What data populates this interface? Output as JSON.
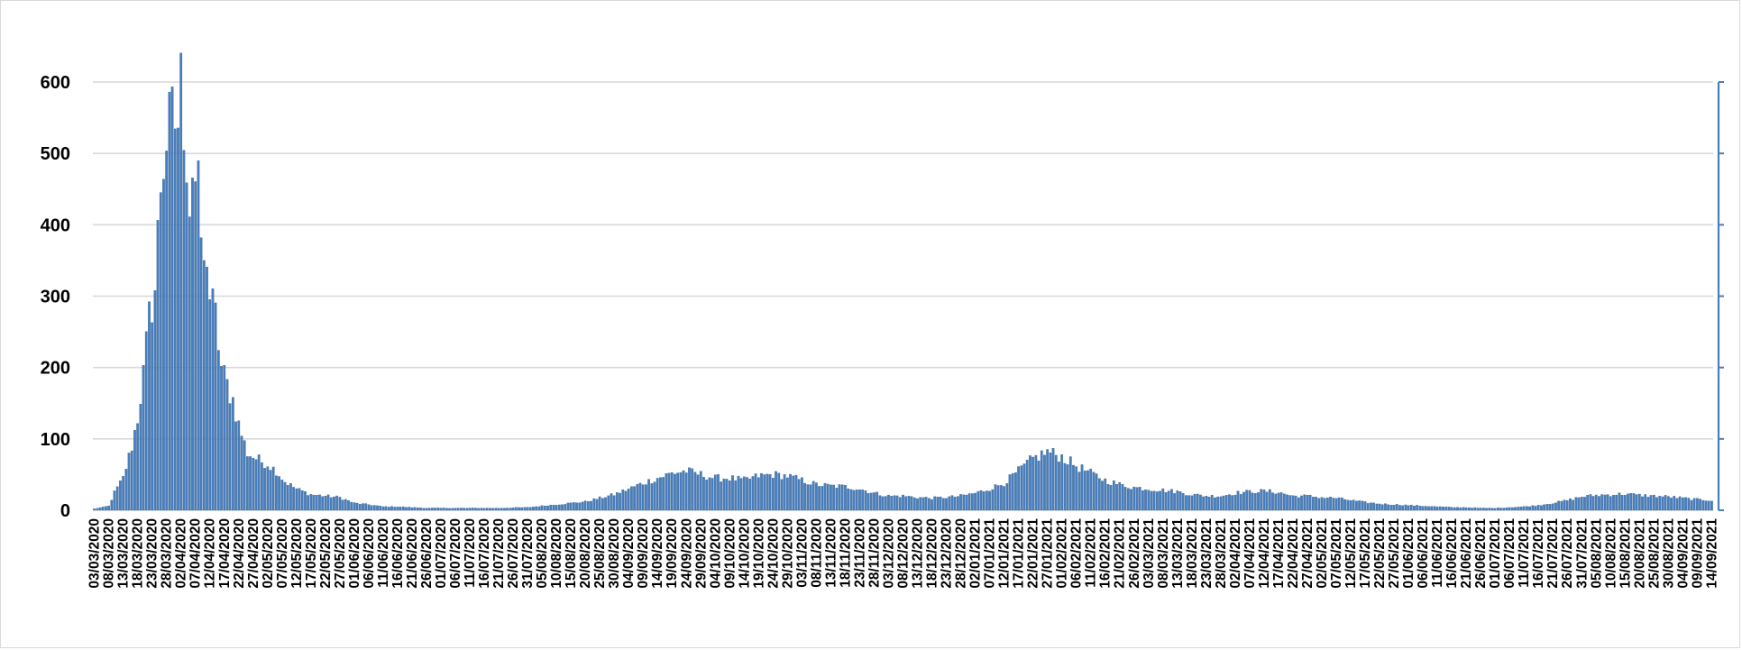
{
  "chart_data": {
    "type": "bar",
    "title": "",
    "xlabel": "",
    "ylabel": "",
    "ylim": [
      0,
      600
    ],
    "yticks": [
      0,
      100,
      200,
      300,
      400,
      500,
      600
    ],
    "grid": true,
    "legend": "none",
    "bar_color": "#4a7ebb",
    "bar_edge_color": "#2f5f95",
    "x_start": "03/03/2020",
    "x_end": "14/09/2021",
    "x_tick_labels": [
      "03/03/2020",
      "08/03/2020",
      "13/03/2020",
      "18/03/2020",
      "23/03/2020",
      "28/03/2020",
      "02/04/2020",
      "07/04/2020",
      "12/04/2020",
      "17/04/2020",
      "22/04/2020",
      "27/04/2020",
      "02/05/2020",
      "07/05/2020",
      "12/05/2020",
      "17/05/2020",
      "22/05/2020",
      "27/05/2020",
      "01/06/2020",
      "06/06/2020",
      "11/06/2020",
      "16/06/2020",
      "21/06/2020",
      "26/06/2020",
      "01/07/2020",
      "06/07/2020",
      "11/07/2020",
      "16/07/2020",
      "21/07/2020",
      "26/07/2020",
      "31/07/2020",
      "05/08/2020",
      "10/08/2020",
      "15/08/2020",
      "20/08/2020",
      "25/08/2020",
      "30/08/2020",
      "04/09/2020",
      "09/09/2020",
      "14/09/2020",
      "19/09/2020",
      "24/09/2020",
      "29/09/2020",
      "04/10/2020",
      "09/10/2020",
      "14/10/2020",
      "19/10/2020",
      "24/10/2020",
      "29/10/2020",
      "03/11/2020",
      "08/11/2020",
      "13/11/2020",
      "18/11/2020",
      "23/11/2020",
      "28/11/2020",
      "03/12/2020",
      "08/12/2020",
      "13/12/2020",
      "18/12/2020",
      "23/12/2020",
      "28/12/2020",
      "02/01/2021",
      "07/01/2021",
      "12/01/2021",
      "17/01/2021",
      "22/01/2021",
      "27/01/2021",
      "01/02/2021",
      "06/02/2021",
      "11/02/2021",
      "16/02/2021",
      "21/02/2021",
      "26/02/2021",
      "03/03/2021",
      "08/03/2021",
      "13/03/2021",
      "18/03/2021",
      "23/03/2021",
      "28/03/2021",
      "02/04/2021",
      "07/04/2021",
      "12/04/2021",
      "17/04/2021",
      "22/04/2021",
      "27/04/2021",
      "02/05/2021",
      "07/05/2021",
      "12/05/2021",
      "17/05/2021",
      "22/05/2021",
      "27/05/2021",
      "01/06/2021",
      "06/06/2021",
      "11/06/2021",
      "16/06/2021",
      "21/06/2021",
      "26/06/2021",
      "01/07/2021",
      "06/07/2021",
      "11/07/2021",
      "16/07/2021",
      "21/07/2021",
      "26/07/2021",
      "31/07/2021",
      "05/08/2021",
      "10/08/2021",
      "15/08/2021",
      "20/08/2021",
      "25/08/2021",
      "30/08/2021",
      "04/09/2021",
      "09/09/2021",
      "14/09/2021"
    ],
    "key_points": [
      [
        "03/03/2020",
        2
      ],
      [
        "08/03/2020",
        6
      ],
      [
        "10/03/2020",
        25
      ],
      [
        "13/03/2020",
        45
      ],
      [
        "16/03/2020",
        90
      ],
      [
        "18/03/2020",
        130
      ],
      [
        "20/03/2020",
        190
      ],
      [
        "22/03/2020",
        270
      ],
      [
        "24/03/2020",
        310
      ],
      [
        "26/03/2020",
        460
      ],
      [
        "28/03/2020",
        520
      ],
      [
        "30/03/2020",
        545
      ],
      [
        "01/04/2020",
        545
      ],
      [
        "02/04/2020",
        595
      ],
      [
        "04/04/2020",
        500
      ],
      [
        "05/04/2020",
        430
      ],
      [
        "06/04/2020",
        480
      ],
      [
        "08/04/2020",
        440
      ],
      [
        "10/04/2020",
        330
      ],
      [
        "11/04/2020",
        365
      ],
      [
        "12/04/2020",
        300
      ],
      [
        "14/04/2020",
        270
      ],
      [
        "16/04/2020",
        200
      ],
      [
        "18/04/2020",
        175
      ],
      [
        "20/04/2020",
        155
      ],
      [
        "22/04/2020",
        120
      ],
      [
        "25/04/2020",
        80
      ],
      [
        "27/04/2020",
        75
      ],
      [
        "30/04/2020",
        68
      ],
      [
        "02/05/2020",
        65
      ],
      [
        "05/05/2020",
        55
      ],
      [
        "08/05/2020",
        40
      ],
      [
        "12/05/2020",
        30
      ],
      [
        "17/05/2020",
        22
      ],
      [
        "22/05/2020",
        20
      ],
      [
        "27/05/2020",
        18
      ],
      [
        "01/06/2020",
        10
      ],
      [
        "06/06/2020",
        8
      ],
      [
        "11/06/2020",
        5
      ],
      [
        "16/06/2020",
        5
      ],
      [
        "21/06/2020",
        4
      ],
      [
        "26/06/2020",
        3
      ],
      [
        "01/07/2020",
        3
      ],
      [
        "11/07/2020",
        3
      ],
      [
        "21/07/2020",
        3
      ],
      [
        "31/07/2020",
        4
      ],
      [
        "05/08/2020",
        6
      ],
      [
        "10/08/2020",
        8
      ],
      [
        "15/08/2020",
        10
      ],
      [
        "20/08/2020",
        12
      ],
      [
        "25/08/2020",
        17
      ],
      [
        "30/08/2020",
        22
      ],
      [
        "04/09/2020",
        30
      ],
      [
        "09/09/2020",
        38
      ],
      [
        "14/09/2020",
        45
      ],
      [
        "19/09/2020",
        52
      ],
      [
        "24/09/2020",
        55
      ],
      [
        "29/09/2020",
        50
      ],
      [
        "04/10/2020",
        45
      ],
      [
        "09/10/2020",
        45
      ],
      [
        "14/10/2020",
        42
      ],
      [
        "19/10/2020",
        48
      ],
      [
        "24/10/2020",
        50
      ],
      [
        "29/10/2020",
        48
      ],
      [
        "03/11/2020",
        42
      ],
      [
        "08/11/2020",
        36
      ],
      [
        "13/11/2020",
        34
      ],
      [
        "18/11/2020",
        33
      ],
      [
        "23/11/2020",
        30
      ],
      [
        "28/11/2020",
        24
      ],
      [
        "03/12/2020",
        20
      ],
      [
        "08/12/2020",
        20
      ],
      [
        "13/12/2020",
        18
      ],
      [
        "18/12/2020",
        17
      ],
      [
        "23/12/2020",
        18
      ],
      [
        "28/12/2020",
        20
      ],
      [
        "02/01/2021",
        24
      ],
      [
        "07/01/2021",
        30
      ],
      [
        "12/01/2021",
        38
      ],
      [
        "17/01/2021",
        55
      ],
      [
        "22/01/2021",
        72
      ],
      [
        "27/01/2021",
        82
      ],
      [
        "01/02/2021",
        75
      ],
      [
        "06/02/2021",
        62
      ],
      [
        "11/02/2021",
        52
      ],
      [
        "16/02/2021",
        42
      ],
      [
        "21/02/2021",
        36
      ],
      [
        "26/02/2021",
        32
      ],
      [
        "03/03/2021",
        30
      ],
      [
        "08/03/2021",
        28
      ],
      [
        "13/03/2021",
        26
      ],
      [
        "18/03/2021",
        22
      ],
      [
        "23/03/2021",
        20
      ],
      [
        "28/03/2021",
        20
      ],
      [
        "02/04/2021",
        24
      ],
      [
        "07/04/2021",
        26
      ],
      [
        "12/04/2021",
        27
      ],
      [
        "17/04/2021",
        25
      ],
      [
        "22/04/2021",
        20
      ],
      [
        "27/04/2021",
        20
      ],
      [
        "02/05/2021",
        18
      ],
      [
        "07/05/2021",
        17
      ],
      [
        "12/05/2021",
        14
      ],
      [
        "17/05/2021",
        11
      ],
      [
        "22/05/2021",
        9
      ],
      [
        "27/05/2021",
        8
      ],
      [
        "01/06/2021",
        7
      ],
      [
        "06/06/2021",
        6
      ],
      [
        "11/06/2021",
        5
      ],
      [
        "16/06/2021",
        4
      ],
      [
        "21/06/2021",
        4
      ],
      [
        "26/06/2021",
        3
      ],
      [
        "01/07/2021",
        3
      ],
      [
        "06/07/2021",
        4
      ],
      [
        "11/07/2021",
        5
      ],
      [
        "16/07/2021",
        7
      ],
      [
        "21/07/2021",
        10
      ],
      [
        "26/07/2021",
        14
      ],
      [
        "31/07/2021",
        19
      ],
      [
        "05/08/2021",
        21
      ],
      [
        "10/08/2021",
        22
      ],
      [
        "15/08/2021",
        23
      ],
      [
        "20/08/2021",
        21
      ],
      [
        "25/08/2021",
        20
      ],
      [
        "30/08/2021",
        19
      ],
      [
        "04/09/2021",
        17
      ],
      [
        "09/09/2021",
        15
      ],
      [
        "14/09/2021",
        14
      ]
    ]
  }
}
